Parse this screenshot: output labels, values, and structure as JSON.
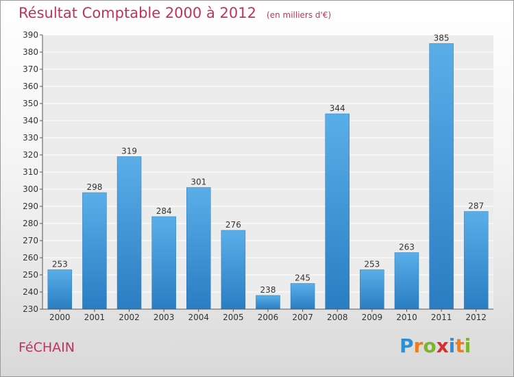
{
  "header": {
    "title": "Résultat Comptable 2000 à 2012",
    "subtitle": "(en milliers d'€)"
  },
  "footer": {
    "commune": "FéCHAIN",
    "logo_letters": [
      "P",
      "r",
      "o",
      "x",
      "i",
      "t",
      "i"
    ],
    "logo_colors": [
      "#2e8fd8",
      "#f07c1a",
      "#7ab52a",
      "#d62e2e",
      "#2e8fd8",
      "#f07c1a",
      "#7ab52a"
    ]
  },
  "chart_data": {
    "type": "bar",
    "title": "Résultat Comptable 2000 à 2012",
    "subtitle": "(en milliers d'€)",
    "categories": [
      "2000",
      "2001",
      "2002",
      "2003",
      "2004",
      "2005",
      "2006",
      "2007",
      "2008",
      "2009",
      "2010",
      "2011",
      "2012"
    ],
    "values": [
      253,
      298,
      319,
      284,
      301,
      276,
      238,
      245,
      344,
      253,
      263,
      385,
      287
    ],
    "ylim": [
      230,
      390
    ],
    "yticks": [
      230,
      240,
      250,
      260,
      270,
      280,
      290,
      300,
      310,
      320,
      330,
      340,
      350,
      360,
      370,
      380,
      390
    ],
    "grid": true,
    "bar_color": "#3f97d8"
  }
}
